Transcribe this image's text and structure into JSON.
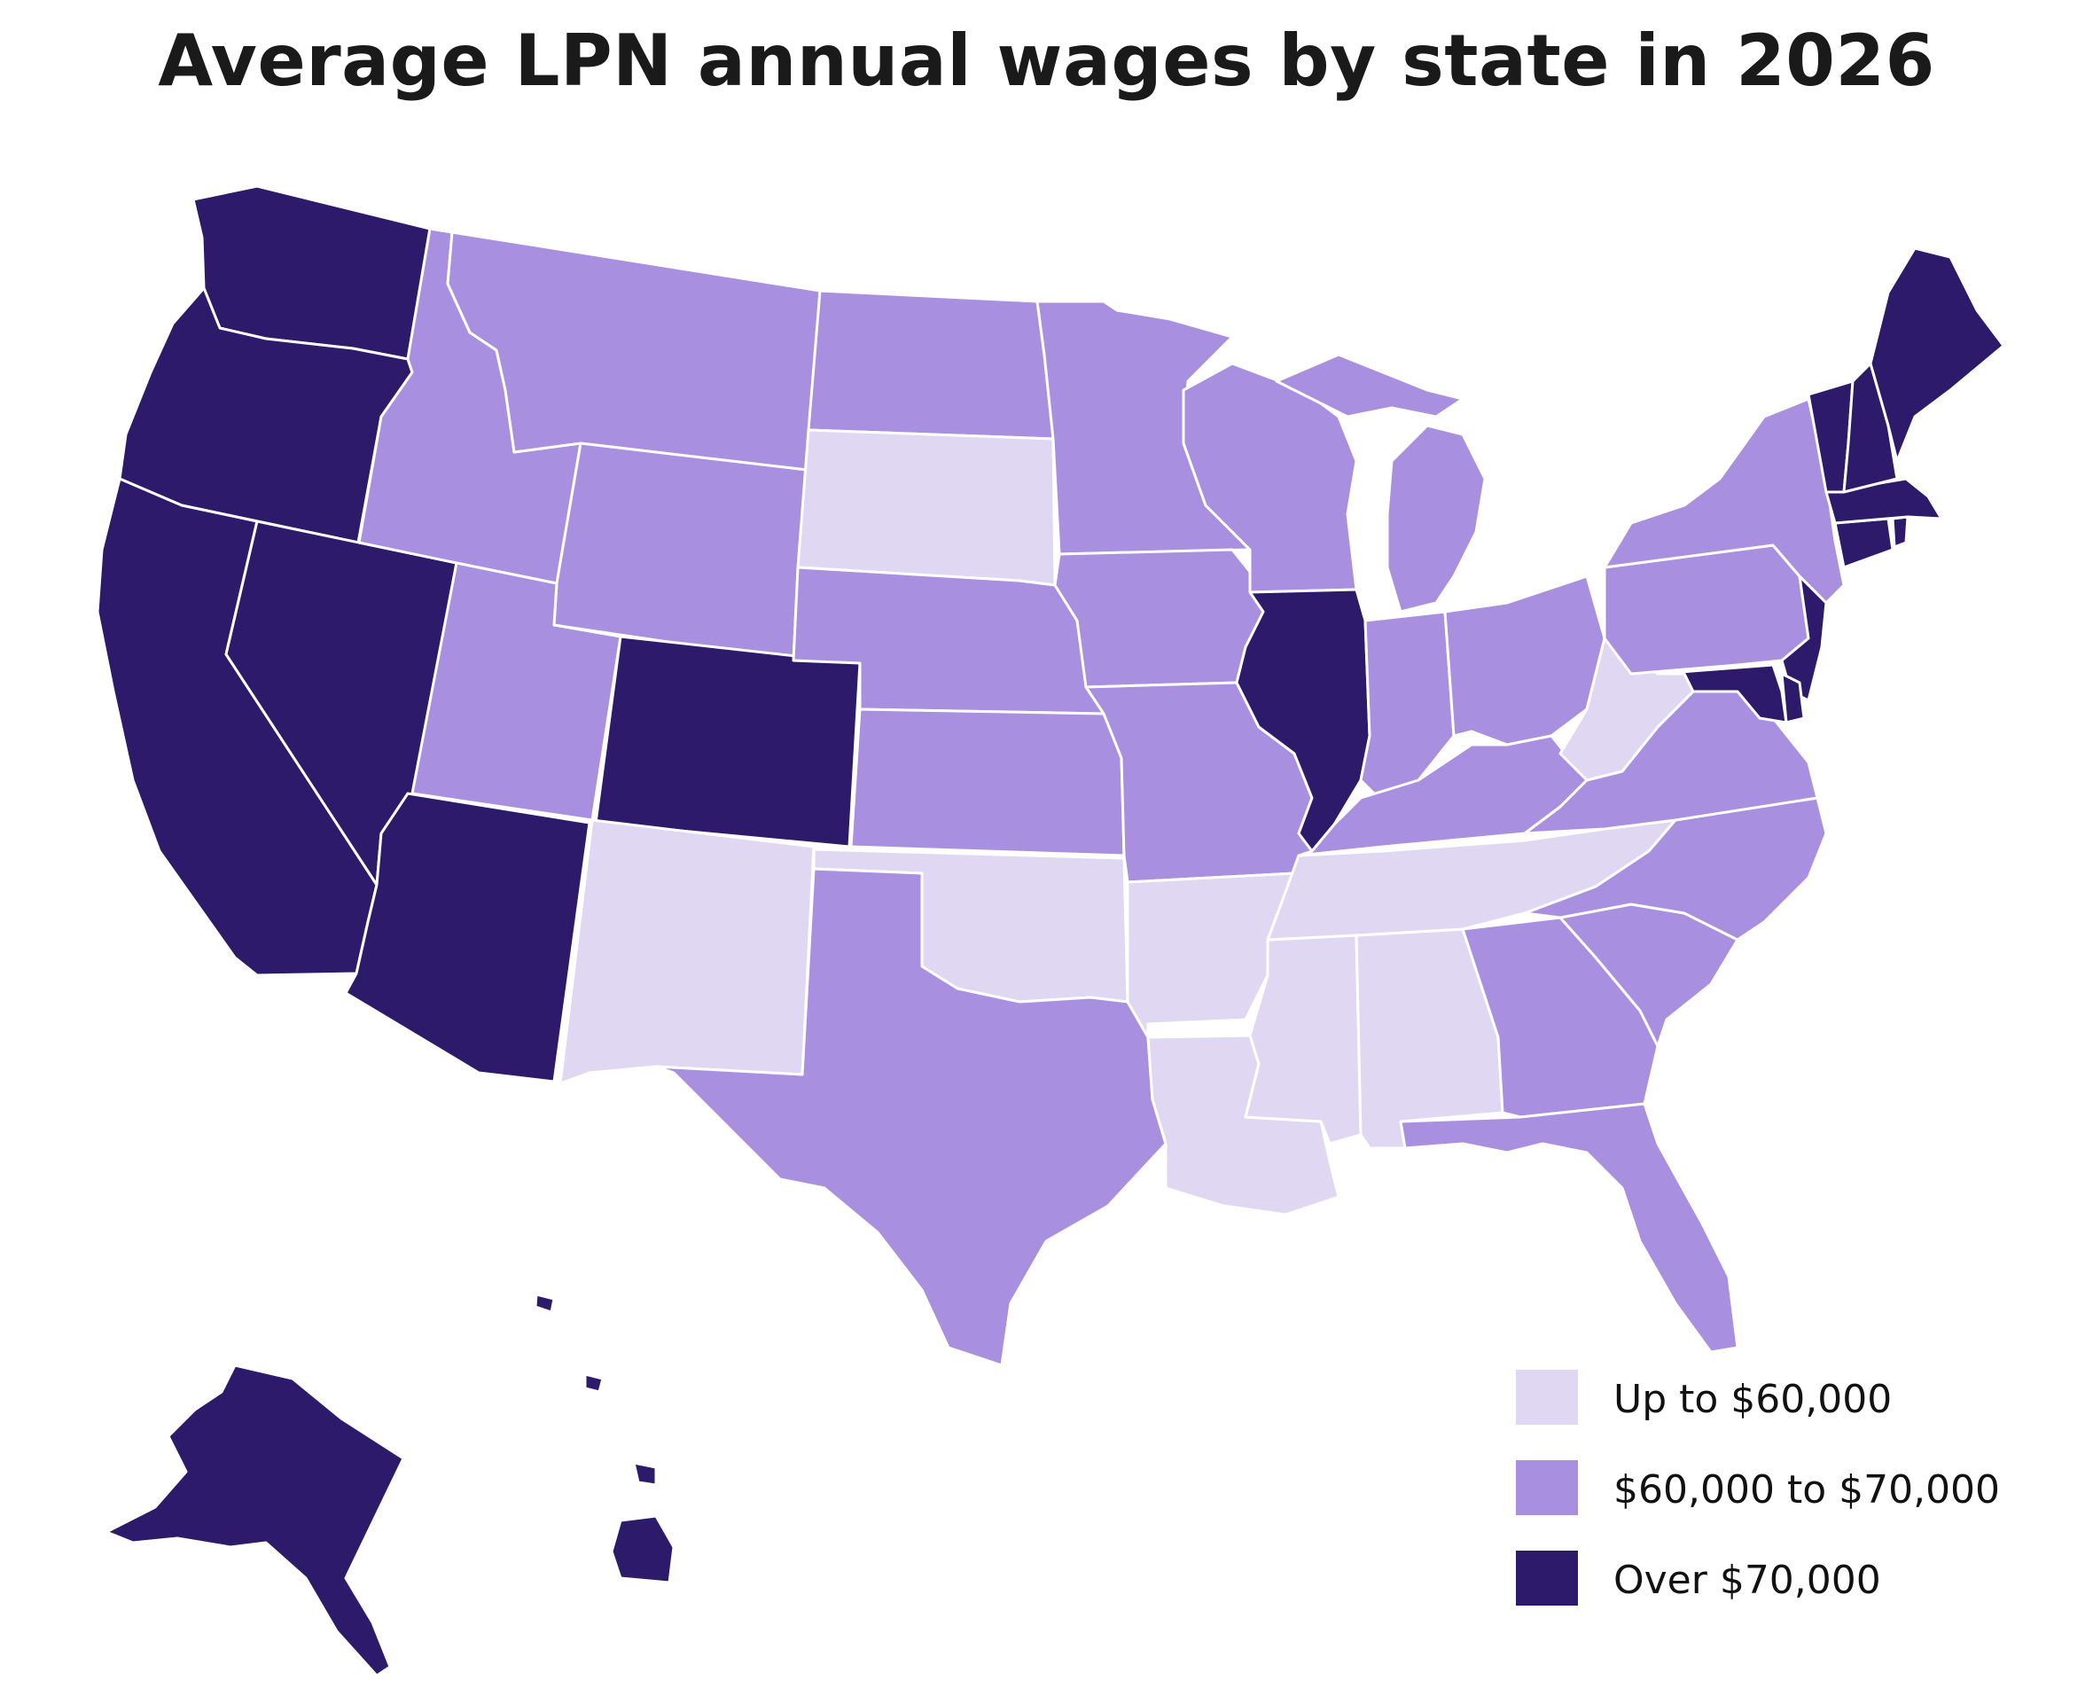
{
  "title": "Average LPN annual wages by state in 2026",
  "colors": {
    "low": "#e0d8f3",
    "mid": "#a88fdf",
    "high": "#2d1a6a",
    "border": "#ffffff"
  },
  "legend": [
    {
      "label": "Up to $60,000",
      "tier": "low"
    },
    {
      "label": "$60,000 to $70,000",
      "tier": "mid"
    },
    {
      "label": "Over $70,000",
      "tier": "high"
    }
  ],
  "states": [
    {
      "state": "WA",
      "tier": "high"
    },
    {
      "state": "OR",
      "tier": "high"
    },
    {
      "state": "CA",
      "tier": "high"
    },
    {
      "state": "NV",
      "tier": "high"
    },
    {
      "state": "AZ",
      "tier": "high"
    },
    {
      "state": "CO",
      "tier": "high"
    },
    {
      "state": "IL",
      "tier": "high"
    },
    {
      "state": "ME",
      "tier": "high"
    },
    {
      "state": "VT",
      "tier": "high"
    },
    {
      "state": "NH",
      "tier": "high"
    },
    {
      "state": "MA",
      "tier": "high"
    },
    {
      "state": "CT",
      "tier": "high"
    },
    {
      "state": "RI",
      "tier": "high"
    },
    {
      "state": "NJ",
      "tier": "high"
    },
    {
      "state": "MD",
      "tier": "high"
    },
    {
      "state": "DE",
      "tier": "high"
    },
    {
      "state": "AK",
      "tier": "high"
    },
    {
      "state": "HI",
      "tier": "high"
    },
    {
      "state": "ID",
      "tier": "mid"
    },
    {
      "state": "MT",
      "tier": "mid"
    },
    {
      "state": "WY",
      "tier": "mid"
    },
    {
      "state": "UT",
      "tier": "mid"
    },
    {
      "state": "ND",
      "tier": "mid"
    },
    {
      "state": "NE",
      "tier": "mid"
    },
    {
      "state": "KS",
      "tier": "mid"
    },
    {
      "state": "TX",
      "tier": "mid"
    },
    {
      "state": "MN",
      "tier": "mid"
    },
    {
      "state": "IA",
      "tier": "mid"
    },
    {
      "state": "MO",
      "tier": "mid"
    },
    {
      "state": "WI",
      "tier": "mid"
    },
    {
      "state": "MI",
      "tier": "mid"
    },
    {
      "state": "IN",
      "tier": "mid"
    },
    {
      "state": "OH",
      "tier": "mid"
    },
    {
      "state": "KY",
      "tier": "mid"
    },
    {
      "state": "PA",
      "tier": "mid"
    },
    {
      "state": "NY",
      "tier": "mid"
    },
    {
      "state": "VA",
      "tier": "mid"
    },
    {
      "state": "NC",
      "tier": "mid"
    },
    {
      "state": "SC",
      "tier": "mid"
    },
    {
      "state": "GA",
      "tier": "mid"
    },
    {
      "state": "FL",
      "tier": "mid"
    },
    {
      "state": "SD",
      "tier": "low"
    },
    {
      "state": "NM",
      "tier": "low"
    },
    {
      "state": "OK",
      "tier": "low"
    },
    {
      "state": "AR",
      "tier": "low"
    },
    {
      "state": "LA",
      "tier": "low"
    },
    {
      "state": "MS",
      "tier": "low"
    },
    {
      "state": "AL",
      "tier": "low"
    },
    {
      "state": "TN",
      "tier": "low"
    },
    {
      "state": "WV",
      "tier": "low"
    }
  ]
}
